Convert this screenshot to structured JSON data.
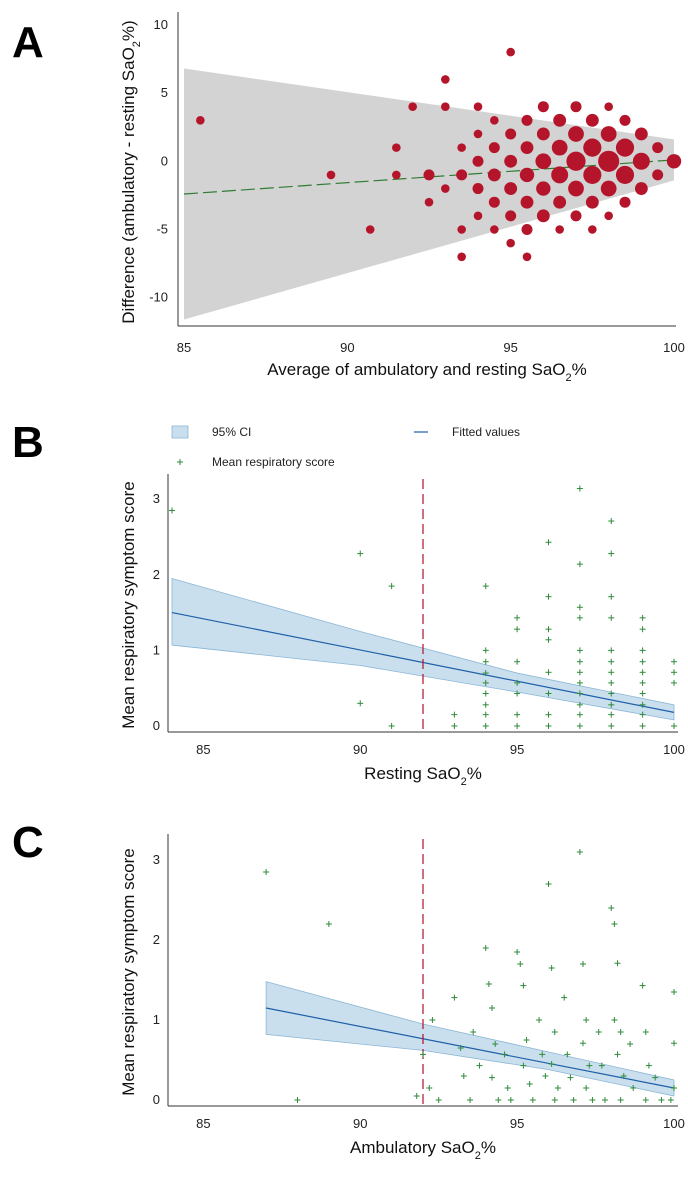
{
  "panels": {
    "a": {
      "letter": "A"
    },
    "b": {
      "letter": "B"
    },
    "c": {
      "letter": "C"
    }
  },
  "chart_data": [
    {
      "panel": "A",
      "type": "scatter",
      "xlabel": "Average of ambulatory and resting SaO2%",
      "ylabel": "Difference (ambulatory - resting SaO2%)",
      "xlim": [
        85,
        100
      ],
      "ylim": [
        -12,
        10.5
      ],
      "xticks": [
        "85",
        "90",
        "95",
        "100"
      ],
      "yticks": [
        "10",
        "5",
        "0",
        "-5",
        "-10"
      ],
      "limits_band_color": "#d3d3d3",
      "point_color": "#b5152b",
      "trend_color": "#2e7d32",
      "trend_line": {
        "x": [
          85,
          100
        ],
        "y": [
          -2.4,
          0.1
        ]
      },
      "band": {
        "x_start": 85,
        "upper_start": 6.8,
        "lower_start": -11.6,
        "x_end": 100,
        "upper_end": 1.6,
        "lower_end": -1.4
      },
      "points": [
        {
          "x": 85.5,
          "y": 3,
          "n": 1
        },
        {
          "x": 89.5,
          "y": -1,
          "n": 1
        },
        {
          "x": 90.7,
          "y": -5,
          "n": 1
        },
        {
          "x": 91.5,
          "y": 1,
          "n": 1
        },
        {
          "x": 91.5,
          "y": -1,
          "n": 1
        },
        {
          "x": 92,
          "y": 4,
          "n": 1
        },
        {
          "x": 92.5,
          "y": -1,
          "n": 2
        },
        {
          "x": 92.5,
          "y": -3,
          "n": 1
        },
        {
          "x": 93,
          "y": 6,
          "n": 1
        },
        {
          "x": 93,
          "y": 4,
          "n": 1
        },
        {
          "x": 93,
          "y": -2,
          "n": 1
        },
        {
          "x": 93.5,
          "y": -1,
          "n": 2
        },
        {
          "x": 93.5,
          "y": 1,
          "n": 1
        },
        {
          "x": 93.5,
          "y": -5,
          "n": 1
        },
        {
          "x": 93.5,
          "y": -7,
          "n": 1
        },
        {
          "x": 94,
          "y": 2,
          "n": 1
        },
        {
          "x": 94,
          "y": 0,
          "n": 2
        },
        {
          "x": 94,
          "y": -2,
          "n": 2
        },
        {
          "x": 94,
          "y": -4,
          "n": 1
        },
        {
          "x": 94,
          "y": 4,
          "n": 1
        },
        {
          "x": 94.5,
          "y": 3,
          "n": 1
        },
        {
          "x": 94.5,
          "y": 1,
          "n": 2
        },
        {
          "x": 94.5,
          "y": -1,
          "n": 3
        },
        {
          "x": 94.5,
          "y": -3,
          "n": 2
        },
        {
          "x": 94.5,
          "y": -5,
          "n": 1
        },
        {
          "x": 95,
          "y": 8,
          "n": 1
        },
        {
          "x": 95,
          "y": 2,
          "n": 2
        },
        {
          "x": 95,
          "y": 0,
          "n": 3
        },
        {
          "x": 95,
          "y": -2,
          "n": 3
        },
        {
          "x": 95,
          "y": -4,
          "n": 2
        },
        {
          "x": 95,
          "y": -6,
          "n": 1
        },
        {
          "x": 95.5,
          "y": 3,
          "n": 2
        },
        {
          "x": 95.5,
          "y": 1,
          "n": 3
        },
        {
          "x": 95.5,
          "y": -1,
          "n": 4
        },
        {
          "x": 95.5,
          "y": -3,
          "n": 3
        },
        {
          "x": 95.5,
          "y": -5,
          "n": 2
        },
        {
          "x": 95.5,
          "y": -7,
          "n": 1
        },
        {
          "x": 96,
          "y": 4,
          "n": 2
        },
        {
          "x": 96,
          "y": 2,
          "n": 3
        },
        {
          "x": 96,
          "y": 0,
          "n": 5
        },
        {
          "x": 96,
          "y": -2,
          "n": 4
        },
        {
          "x": 96,
          "y": -4,
          "n": 3
        },
        {
          "x": 96.5,
          "y": 3,
          "n": 3
        },
        {
          "x": 96.5,
          "y": 1,
          "n": 5
        },
        {
          "x": 96.5,
          "y": -1,
          "n": 6
        },
        {
          "x": 96.5,
          "y": -3,
          "n": 3
        },
        {
          "x": 96.5,
          "y": -5,
          "n": 1
        },
        {
          "x": 97,
          "y": 4,
          "n": 2
        },
        {
          "x": 97,
          "y": 2,
          "n": 5
        },
        {
          "x": 97,
          "y": 0,
          "n": 8
        },
        {
          "x": 97,
          "y": -2,
          "n": 5
        },
        {
          "x": 97,
          "y": -4,
          "n": 2
        },
        {
          "x": 97.5,
          "y": 3,
          "n": 3
        },
        {
          "x": 97.5,
          "y": 1,
          "n": 7
        },
        {
          "x": 97.5,
          "y": -1,
          "n": 7
        },
        {
          "x": 97.5,
          "y": -3,
          "n": 3
        },
        {
          "x": 97.5,
          "y": -5,
          "n": 1
        },
        {
          "x": 98,
          "y": 4,
          "n": 1
        },
        {
          "x": 98,
          "y": 2,
          "n": 5
        },
        {
          "x": 98,
          "y": 0,
          "n": 10
        },
        {
          "x": 98,
          "y": -2,
          "n": 5
        },
        {
          "x": 98,
          "y": -4,
          "n": 1
        },
        {
          "x": 98.5,
          "y": 3,
          "n": 2
        },
        {
          "x": 98.5,
          "y": 1,
          "n": 7
        },
        {
          "x": 98.5,
          "y": -1,
          "n": 7
        },
        {
          "x": 98.5,
          "y": -3,
          "n": 2
        },
        {
          "x": 99,
          "y": 2,
          "n": 3
        },
        {
          "x": 99,
          "y": 0,
          "n": 6
        },
        {
          "x": 99,
          "y": -2,
          "n": 3
        },
        {
          "x": 99.5,
          "y": 1,
          "n": 2
        },
        {
          "x": 99.5,
          "y": -1,
          "n": 2
        },
        {
          "x": 100,
          "y": 0,
          "n": 4
        }
      ]
    },
    {
      "panel": "B",
      "type": "scatter",
      "xlabel": "Resting SaO2%",
      "ylabel": "Mean respiratory symptom score",
      "xlim": [
        84,
        100
      ],
      "ylim": [
        0,
        3.2
      ],
      "xticks": [
        "85",
        "90",
        "95",
        "100"
      ],
      "yticks": [
        "3",
        "2",
        "1",
        "0"
      ],
      "legend": {
        "ci_label": "95% CI",
        "fit_label": "Fitted values",
        "points_label": "Mean respiratory score"
      },
      "threshold_x": 92,
      "fit": {
        "x": [
          84,
          100
        ],
        "y": [
          1.5,
          0.18
        ]
      },
      "ci": {
        "x": [
          84,
          90,
          95,
          100
        ],
        "upper": [
          1.95,
          1.25,
          0.7,
          0.28
        ],
        "lower": [
          1.07,
          0.8,
          0.45,
          0.08
        ]
      },
      "points": [
        {
          "x": 84,
          "y": 2.85
        },
        {
          "x": 90,
          "y": 2.28
        },
        {
          "x": 90,
          "y": 0.3
        },
        {
          "x": 91,
          "y": 1.85
        },
        {
          "x": 91,
          "y": 0
        },
        {
          "x": 93,
          "y": 0.15
        },
        {
          "x": 93,
          "y": 0
        },
        {
          "x": 94,
          "y": 1.85
        },
        {
          "x": 94,
          "y": 1.0
        },
        {
          "x": 94,
          "y": 0.85
        },
        {
          "x": 94,
          "y": 0.7
        },
        {
          "x": 94,
          "y": 0.57
        },
        {
          "x": 94,
          "y": 0.43
        },
        {
          "x": 94,
          "y": 0.28
        },
        {
          "x": 94,
          "y": 0.15
        },
        {
          "x": 94,
          "y": 0
        },
        {
          "x": 95,
          "y": 1.43
        },
        {
          "x": 95,
          "y": 1.28
        },
        {
          "x": 95,
          "y": 0.85
        },
        {
          "x": 95,
          "y": 0.57
        },
        {
          "x": 95,
          "y": 0.43
        },
        {
          "x": 95,
          "y": 0.15
        },
        {
          "x": 95,
          "y": 0
        },
        {
          "x": 96,
          "y": 2.43
        },
        {
          "x": 96,
          "y": 1.71
        },
        {
          "x": 96,
          "y": 1.28
        },
        {
          "x": 96,
          "y": 1.14
        },
        {
          "x": 96,
          "y": 0.71
        },
        {
          "x": 96,
          "y": 0.43
        },
        {
          "x": 96,
          "y": 0.15
        },
        {
          "x": 96,
          "y": 0
        },
        {
          "x": 97,
          "y": 3.14
        },
        {
          "x": 97,
          "y": 2.14
        },
        {
          "x": 97,
          "y": 1.57
        },
        {
          "x": 97,
          "y": 1.43
        },
        {
          "x": 97,
          "y": 1.0
        },
        {
          "x": 97,
          "y": 0.85
        },
        {
          "x": 97,
          "y": 0.71
        },
        {
          "x": 97,
          "y": 0.57
        },
        {
          "x": 97,
          "y": 0.43
        },
        {
          "x": 97,
          "y": 0.28
        },
        {
          "x": 97,
          "y": 0.15
        },
        {
          "x": 97,
          "y": 0
        },
        {
          "x": 98,
          "y": 2.71
        },
        {
          "x": 98,
          "y": 2.28
        },
        {
          "x": 98,
          "y": 1.71
        },
        {
          "x": 98,
          "y": 1.43
        },
        {
          "x": 98,
          "y": 1.0
        },
        {
          "x": 98,
          "y": 0.85
        },
        {
          "x": 98,
          "y": 0.71
        },
        {
          "x": 98,
          "y": 0.57
        },
        {
          "x": 98,
          "y": 0.43
        },
        {
          "x": 98,
          "y": 0.28
        },
        {
          "x": 98,
          "y": 0.15
        },
        {
          "x": 98,
          "y": 0
        },
        {
          "x": 99,
          "y": 1.43
        },
        {
          "x": 99,
          "y": 1.28
        },
        {
          "x": 99,
          "y": 1.0
        },
        {
          "x": 99,
          "y": 0.85
        },
        {
          "x": 99,
          "y": 0.71
        },
        {
          "x": 99,
          "y": 0.57
        },
        {
          "x": 99,
          "y": 0.43
        },
        {
          "x": 99,
          "y": 0.28
        },
        {
          "x": 99,
          "y": 0.15
        },
        {
          "x": 99,
          "y": 0
        },
        {
          "x": 100,
          "y": 0.85
        },
        {
          "x": 100,
          "y": 0.71
        },
        {
          "x": 100,
          "y": 0.57
        },
        {
          "x": 100,
          "y": 0
        }
      ]
    },
    {
      "panel": "C",
      "type": "scatter",
      "xlabel": "Ambulatory SaO2%",
      "ylabel": "Mean respiratory symptom score",
      "xlim": [
        84,
        100
      ],
      "ylim": [
        0,
        3.2
      ],
      "xticks": [
        "85",
        "90",
        "95",
        "100"
      ],
      "yticks": [
        "3",
        "2",
        "1",
        "0"
      ],
      "threshold_x": 92,
      "fit": {
        "x": [
          87,
          100
        ],
        "y": [
          1.15,
          0.15
        ]
      },
      "ci": {
        "x": [
          87,
          92,
          96,
          100
        ],
        "upper": [
          1.48,
          0.95,
          0.6,
          0.25
        ],
        "lower": [
          0.82,
          0.62,
          0.38,
          0.05
        ]
      },
      "points": [
        {
          "x": 87,
          "y": 2.85
        },
        {
          "x": 88,
          "y": 0
        },
        {
          "x": 89,
          "y": 2.2
        },
        {
          "x": 92,
          "y": 0.57
        },
        {
          "x": 92.2,
          "y": 0.15
        },
        {
          "x": 92.3,
          "y": 1.0
        },
        {
          "x": 91.8,
          "y": 0.05
        },
        {
          "x": 92.5,
          "y": 0.0
        },
        {
          "x": 93,
          "y": 1.28
        },
        {
          "x": 93.2,
          "y": 0.65
        },
        {
          "x": 93.3,
          "y": 0.3
        },
        {
          "x": 93.5,
          "y": 0.0
        },
        {
          "x": 93.6,
          "y": 0.85
        },
        {
          "x": 93.8,
          "y": 0.43
        },
        {
          "x": 94,
          "y": 1.9
        },
        {
          "x": 94.1,
          "y": 1.45
        },
        {
          "x": 94.2,
          "y": 1.15
        },
        {
          "x": 94.3,
          "y": 0.7
        },
        {
          "x": 94.2,
          "y": 0.28
        },
        {
          "x": 94.4,
          "y": 0.0
        },
        {
          "x": 94.6,
          "y": 0.57
        },
        {
          "x": 94.7,
          "y": 0.15
        },
        {
          "x": 94.8,
          "y": 0.0
        },
        {
          "x": 95,
          "y": 1.85
        },
        {
          "x": 95.1,
          "y": 1.7
        },
        {
          "x": 95.2,
          "y": 1.43
        },
        {
          "x": 95.3,
          "y": 0.75
        },
        {
          "x": 95.2,
          "y": 0.43
        },
        {
          "x": 95.4,
          "y": 0.2
        },
        {
          "x": 95.5,
          "y": 0.0
        },
        {
          "x": 95.7,
          "y": 1.0
        },
        {
          "x": 95.8,
          "y": 0.57
        },
        {
          "x": 95.9,
          "y": 0.3
        },
        {
          "x": 96,
          "y": 2.7
        },
        {
          "x": 96.1,
          "y": 1.65
        },
        {
          "x": 96.2,
          "y": 0.85
        },
        {
          "x": 96.1,
          "y": 0.45
        },
        {
          "x": 96.3,
          "y": 0.15
        },
        {
          "x": 96.2,
          "y": 0.0
        },
        {
          "x": 96.5,
          "y": 1.28
        },
        {
          "x": 96.6,
          "y": 0.57
        },
        {
          "x": 96.7,
          "y": 0.28
        },
        {
          "x": 96.8,
          "y": 0.0
        },
        {
          "x": 97,
          "y": 3.1
        },
        {
          "x": 97.1,
          "y": 1.7
        },
        {
          "x": 97.2,
          "y": 1.0
        },
        {
          "x": 97.1,
          "y": 0.71
        },
        {
          "x": 97.3,
          "y": 0.43
        },
        {
          "x": 97.2,
          "y": 0.15
        },
        {
          "x": 97.4,
          "y": 0.0
        },
        {
          "x": 97.6,
          "y": 0.85
        },
        {
          "x": 97.7,
          "y": 0.43
        },
        {
          "x": 97.8,
          "y": 0.0
        },
        {
          "x": 98,
          "y": 2.4
        },
        {
          "x": 98.1,
          "y": 2.2
        },
        {
          "x": 98.2,
          "y": 1.71
        },
        {
          "x": 98.1,
          "y": 1.0
        },
        {
          "x": 98.3,
          "y": 0.85
        },
        {
          "x": 98.2,
          "y": 0.57
        },
        {
          "x": 98.4,
          "y": 0.3
        },
        {
          "x": 98.3,
          "y": 0.0
        },
        {
          "x": 98.6,
          "y": 0.7
        },
        {
          "x": 98.7,
          "y": 0.15
        },
        {
          "x": 99,
          "y": 1.43
        },
        {
          "x": 99.1,
          "y": 0.85
        },
        {
          "x": 99.2,
          "y": 0.43
        },
        {
          "x": 99.1,
          "y": 0.0
        },
        {
          "x": 99.4,
          "y": 0.28
        },
        {
          "x": 99.6,
          "y": 0.0
        },
        {
          "x": 100,
          "y": 1.35
        },
        {
          "x": 100,
          "y": 0.71
        },
        {
          "x": 100,
          "y": 0.15
        },
        {
          "x": 99.9,
          "y": 0.0
        }
      ]
    }
  ]
}
